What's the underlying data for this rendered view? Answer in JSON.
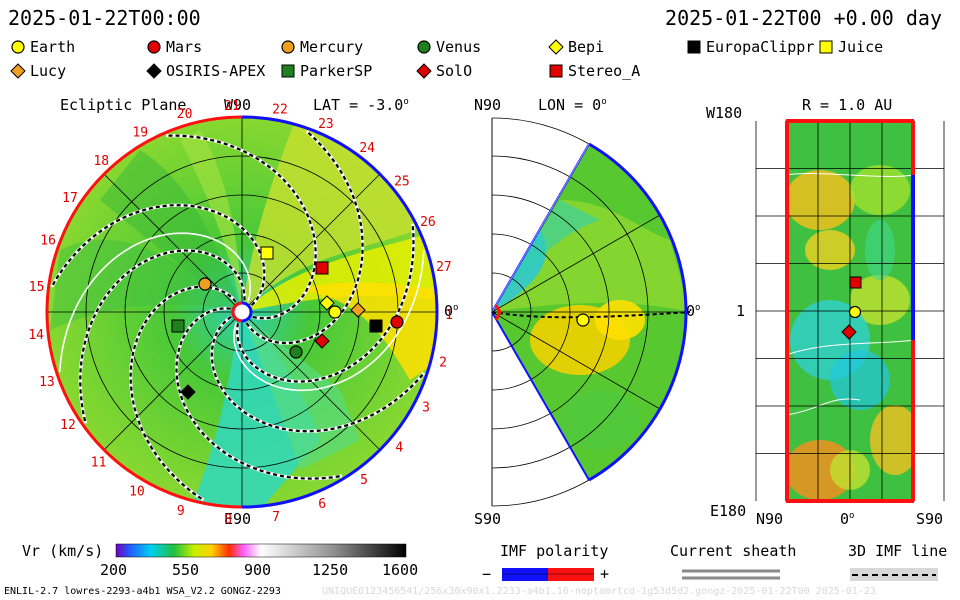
{
  "header": {
    "datetime": "2025-01-22T00:00",
    "offset": "2025-01-22T00 +0.00 day"
  },
  "legend": {
    "items": [
      {
        "label": "Earth",
        "shape": "circle",
        "color": "#ffff00"
      },
      {
        "label": "Mars",
        "shape": "circle",
        "color": "#e00000"
      },
      {
        "label": "Mercury",
        "shape": "circle",
        "color": "#f0a020"
      },
      {
        "label": "Venus",
        "shape": "circle",
        "color": "#208020"
      },
      {
        "label": "Bepi",
        "shape": "diamond",
        "color": "#ffff00"
      },
      {
        "label": "EuropaClippr",
        "shape": "square",
        "color": "#000000"
      },
      {
        "label": "Juice",
        "shape": "square",
        "color": "#ffff00"
      },
      {
        "label": "Lucy",
        "shape": "diamond",
        "color": "#f0a020"
      },
      {
        "label": "OSIRIS-APEX",
        "shape": "diamond",
        "color": "#000000"
      },
      {
        "label": "ParkerSP",
        "shape": "square",
        "color": "#208020"
      },
      {
        "label": "SolO",
        "shape": "diamond",
        "color": "#e00000"
      },
      {
        "label": "Stereo_A",
        "shape": "square",
        "color": "#e00000"
      }
    ]
  },
  "panels": {
    "ecliptic": {
      "title": "Ecliptic Plane",
      "top_label": "W90",
      "lat_label": "LAT = -3.0",
      "right_label": "0",
      "bottom_label": "E90",
      "rotations": [
        "19",
        "20",
        "21",
        "22",
        "23",
        "24",
        "25",
        "26",
        "27",
        "1",
        "2",
        "3",
        "4",
        "5",
        "6",
        "7",
        "8",
        "9",
        "10",
        "11",
        "12",
        "13",
        "14",
        "15",
        "16",
        "17",
        "18"
      ]
    },
    "meridional": {
      "top_label": "N90",
      "lon_label": "LON = 0",
      "right_label": "0",
      "bottom_label": "S90"
    },
    "latlon": {
      "r_label": "R = 1.0 AU",
      "top_left": "W180",
      "mid_left": "1",
      "bottom_left": "E180",
      "x_left": "N90",
      "x_mid": "0",
      "x_right": "S90"
    }
  },
  "colorbar": {
    "label": "Vr (km/s)",
    "ticks": [
      "200",
      "550",
      "900",
      "1250",
      "1600"
    ]
  },
  "imf": {
    "title": "IMF polarity",
    "minus": "−",
    "plus": "+",
    "sheath": "Current sheath",
    "line3d": "3D IMF line"
  },
  "footer": {
    "left": "ENLIL-2.7 lowres-2293-a4b1 WSA_V2.2 GONGZ-2293",
    "right": "UNIQUE0123456541/256x30x90x1.2233-a4b1.16-noptamrtcd-1g53d5d2.gongz-2025-01-22T00 2025-01-23"
  },
  "chart_data": {
    "type": "heatmap",
    "quantity": "Vr (km/s)",
    "vr_range": [
      200,
      1600
    ],
    "colorbar_ticks": [
      200,
      550,
      900,
      1250,
      1600
    ],
    "imf_polarity": {
      "negative": "#0000ff",
      "positive": "#ff0000"
    },
    "bodies": [
      {
        "name": "Earth",
        "shape": "circle",
        "color": "#ffff00"
      },
      {
        "name": "Mars",
        "shape": "circle",
        "color": "#e00000"
      },
      {
        "name": "Mercury",
        "shape": "circle",
        "color": "#f0a020"
      },
      {
        "name": "Venus",
        "shape": "circle",
        "color": "#208020"
      },
      {
        "name": "Bepi",
        "shape": "diamond",
        "color": "#ffff00"
      },
      {
        "name": "EuropaClippr",
        "shape": "square",
        "color": "#000000"
      },
      {
        "name": "Juice",
        "shape": "square",
        "color": "#ffff00"
      },
      {
        "name": "Lucy",
        "shape": "diamond",
        "color": "#f0a020"
      },
      {
        "name": "OSIRIS-APEX",
        "shape": "diamond",
        "color": "#000000"
      },
      {
        "name": "ParkerSP",
        "shape": "square",
        "color": "#208020"
      },
      {
        "name": "SolO",
        "shape": "diamond",
        "color": "#e00000"
      },
      {
        "name": "Stereo_A",
        "shape": "square",
        "color": "#e00000"
      }
    ]
  }
}
